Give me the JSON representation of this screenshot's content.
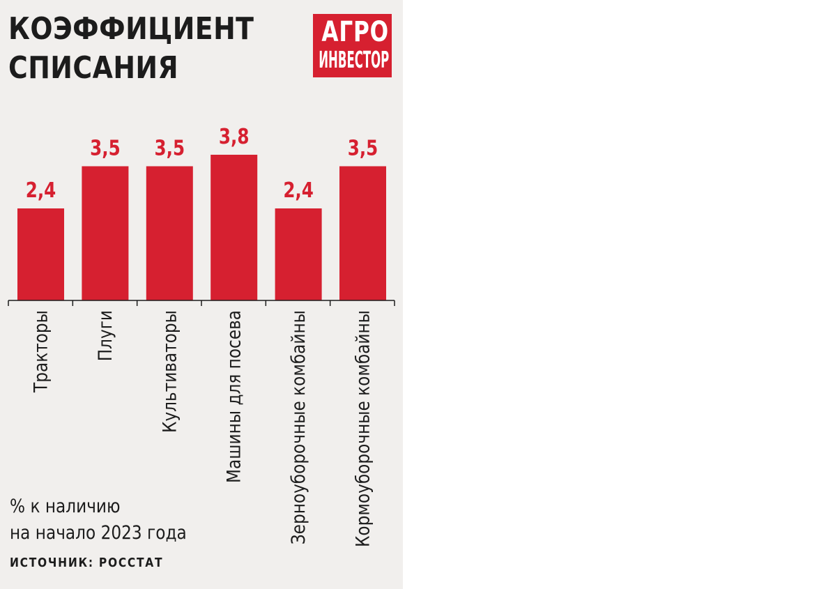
{
  "title": {
    "line1": "КОЭФФИЦИЕНТ",
    "line2": "СПИСАНИЯ"
  },
  "logo": {
    "line1": "АГРО",
    "line2": "ИНВЕСТОР"
  },
  "note": {
    "line1": "% к наличию",
    "line2": "на начало 2023 года"
  },
  "source": "ИСТОЧНИК: РОССТАТ",
  "colors": {
    "bar": "#d62030",
    "value_label": "#d62030",
    "panel_background": "#f1efed",
    "text": "#1c1c1c"
  },
  "chart_data": {
    "type": "bar",
    "title": "КОЭФФИЦИЕНТ СПИСАНИЯ",
    "categories": [
      "Тракторы",
      "Плуги",
      "Культиваторы",
      "Машины для посева",
      "Зерноуборочные комбайны",
      "Кормоуборочные комбайны"
    ],
    "values": [
      2.4,
      3.5,
      3.5,
      3.8,
      2.4,
      3.5
    ],
    "value_labels": [
      "2,4",
      "3,5",
      "3,5",
      "3,8",
      "2,4",
      "3,5"
    ],
    "ylim": [
      0,
      6.14
    ],
    "category_label_orientation": "vertical",
    "grid": false,
    "legend": "none"
  }
}
